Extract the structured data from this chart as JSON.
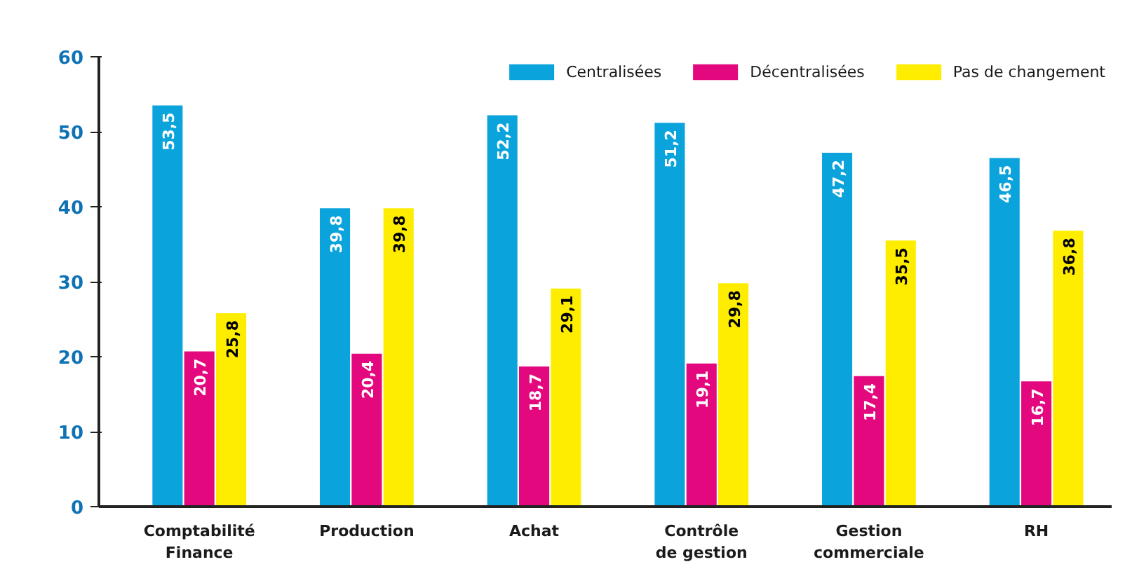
{
  "chart_data": {
    "type": "bar",
    "categories": [
      "Comptabilité\nFinance",
      "Production",
      "Achat",
      "Contrôle\nde gestion",
      "Gestion\ncommerciale",
      "RH"
    ],
    "series": [
      {
        "name": "Centralisées",
        "color": "#0aa3dc",
        "values": [
          53.5,
          39.8,
          52.2,
          51.2,
          47.2,
          46.5
        ],
        "value_labels": [
          "53,5",
          "39,8",
          "52,2",
          "51,2",
          "47,2",
          "46,5"
        ]
      },
      {
        "name": "Décentralisées",
        "color": "#e4087e",
        "values": [
          20.7,
          20.4,
          18.7,
          19.1,
          17.4,
          16.7
        ],
        "value_labels": [
          "20,7",
          "20,4",
          "18,7",
          "19,1",
          "17,4",
          "16,7"
        ]
      },
      {
        "name": "Pas de changement",
        "color": "#ffed00",
        "values": [
          25.8,
          39.8,
          29.1,
          29.8,
          35.5,
          36.8
        ],
        "value_labels": [
          "25,8",
          "39,8",
          "29,1",
          "29,8",
          "35,5",
          "36,8"
        ]
      }
    ],
    "ylim": [
      0,
      60
    ],
    "yticks": [
      0,
      10,
      20,
      30,
      40,
      50,
      60
    ],
    "grid": false,
    "legend": "top right"
  }
}
